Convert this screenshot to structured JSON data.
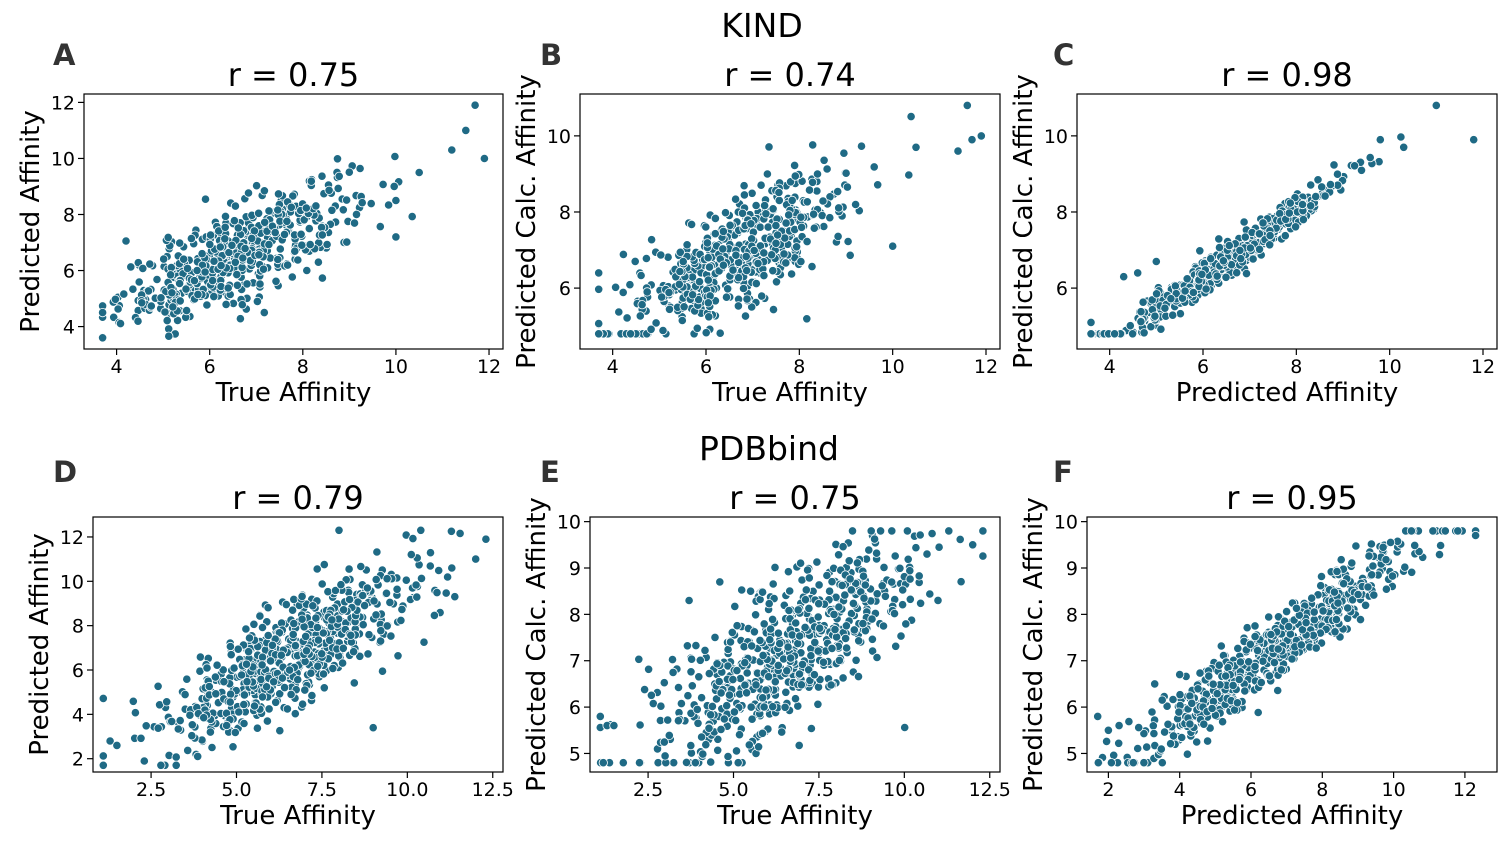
{
  "colors": {
    "point": "#1f6a85"
  },
  "groups": [
    {
      "title": "KIND"
    },
    {
      "title": "PDBbind"
    }
  ],
  "chart_data": [
    {
      "type": "scatter",
      "letter": "A",
      "title": "r = 0.75",
      "xlabel": "True Affinity",
      "ylabel": "Predicted Affinity",
      "xlim": [
        3.3,
        12.3
      ],
      "ylim": [
        3.2,
        12.3
      ],
      "xticks": [
        4,
        6,
        8,
        10,
        12
      ],
      "yticks": [
        4,
        6,
        8,
        10,
        12
      ],
      "n_points": 520,
      "r": 0.75,
      "x_center": 6.6,
      "x_spread": 1.25,
      "y_center": 6.6,
      "y_spread": 1.25,
      "x_range": [
        3.7,
        12.0
      ],
      "y_range": [
        3.6,
        11.9
      ],
      "outliers": [
        [
          3.7,
          4.5
        ],
        [
          11.2,
          10.3
        ],
        [
          11.5,
          11.0
        ],
        [
          11.7,
          11.9
        ],
        [
          11.9,
          10.0
        ],
        [
          10.5,
          9.5
        ],
        [
          10.0,
          7.2
        ],
        [
          10.0,
          8.5
        ]
      ]
    },
    {
      "type": "scatter",
      "letter": "B",
      "title": "r = 0.74",
      "xlabel": "True Affinity",
      "ylabel": "Predicted Calc. Affinity",
      "xlim": [
        3.3,
        12.3
      ],
      "ylim": [
        4.4,
        11.1
      ],
      "xticks": [
        4,
        6,
        8,
        10,
        12
      ],
      "yticks": [
        6,
        8,
        10
      ],
      "n_points": 520,
      "r": 0.74,
      "x_center": 6.6,
      "x_spread": 1.25,
      "y_center": 6.8,
      "y_spread": 1.1,
      "x_range": [
        3.7,
        12.0
      ],
      "y_range": [
        4.8,
        10.8
      ],
      "outliers": [
        [
          3.7,
          6.4
        ],
        [
          11.6,
          10.8
        ],
        [
          11.7,
          9.9
        ],
        [
          11.9,
          10.0
        ],
        [
          11.4,
          9.6
        ],
        [
          10.5,
          9.7
        ],
        [
          10.0,
          7.1
        ]
      ]
    },
    {
      "type": "scatter",
      "letter": "C",
      "title": "r = 0.98",
      "xlabel": "Predicted Affinity",
      "ylabel": "Predicted Calc. Affinity",
      "xlim": [
        3.3,
        12.3
      ],
      "ylim": [
        4.4,
        11.1
      ],
      "xticks": [
        4,
        6,
        8,
        10,
        12
      ],
      "yticks": [
        6,
        8,
        10
      ],
      "n_points": 520,
      "r": 0.98,
      "x_center": 6.6,
      "x_spread": 1.25,
      "y_center": 6.8,
      "y_spread": 1.1,
      "x_range": [
        3.6,
        11.8
      ],
      "y_range": [
        4.8,
        10.8
      ],
      "outliers": [
        [
          3.6,
          5.1
        ],
        [
          4.3,
          6.3
        ],
        [
          4.6,
          6.4
        ],
        [
          5.0,
          6.7
        ],
        [
          11.0,
          10.8
        ],
        [
          11.8,
          9.9
        ],
        [
          10.3,
          9.7
        ],
        [
          9.8,
          9.9
        ]
      ]
    },
    {
      "type": "scatter",
      "letter": "D",
      "title": "r = 0.79",
      "xlabel": "True Affinity",
      "ylabel": "Predicted Affinity",
      "xlim": [
        0.8,
        12.8
      ],
      "ylim": [
        1.4,
        12.9
      ],
      "xticks": [
        2.5,
        5.0,
        7.5,
        10.0,
        12.5
      ],
      "yticks": [
        2,
        4,
        6,
        8,
        10,
        12
      ],
      "n_points": 650,
      "r": 0.79,
      "x_center": 6.5,
      "x_spread": 1.9,
      "y_center": 6.6,
      "y_spread": 2.0,
      "x_range": [
        1.1,
        12.3
      ],
      "y_range": [
        1.7,
        12.3
      ],
      "outliers": [
        [
          1.1,
          1.7
        ],
        [
          1.3,
          2.8
        ],
        [
          1.5,
          2.6
        ],
        [
          11.3,
          10.6
        ],
        [
          12.0,
          11.0
        ],
        [
          12.3,
          11.9
        ],
        [
          8.0,
          12.3
        ],
        [
          9.0,
          3.4
        ]
      ]
    },
    {
      "type": "scatter",
      "letter": "E",
      "title": "r = 0.75",
      "xlabel": "True Affinity",
      "ylabel": "Predicted Calc. Affinity",
      "xlim": [
        0.8,
        12.8
      ],
      "ylim": [
        4.6,
        10.1
      ],
      "xticks": [
        2.5,
        5.0,
        7.5,
        10.0,
        12.5
      ],
      "yticks": [
        5,
        6,
        7,
        8,
        9,
        10
      ],
      "n_points": 650,
      "r": 0.75,
      "x_center": 6.5,
      "x_spread": 1.9,
      "y_center": 7.2,
      "y_spread": 1.2,
      "x_range": [
        1.1,
        12.3
      ],
      "y_range": [
        4.8,
        9.8
      ],
      "outliers": [
        [
          1.1,
          5.8
        ],
        [
          1.3,
          5.6
        ],
        [
          1.5,
          5.6
        ],
        [
          11.3,
          9.8
        ],
        [
          12.0,
          9.5
        ],
        [
          12.3,
          9.8
        ],
        [
          3.7,
          8.3
        ],
        [
          4.6,
          8.7
        ],
        [
          5.5,
          8.5
        ]
      ]
    },
    {
      "type": "scatter",
      "letter": "F",
      "title": "r = 0.95",
      "xlabel": "Predicted Affinity",
      "ylabel": "Predicted Calc. Affinity",
      "xlim": [
        1.4,
        12.9
      ],
      "ylim": [
        4.6,
        10.1
      ],
      "xticks": [
        2,
        4,
        6,
        8,
        10,
        12
      ],
      "yticks": [
        5,
        6,
        7,
        8,
        9,
        10
      ],
      "n_points": 650,
      "r": 0.95,
      "x_center": 6.6,
      "x_spread": 2.0,
      "y_center": 7.2,
      "y_spread": 1.2,
      "x_range": [
        1.7,
        12.3
      ],
      "y_range": [
        4.8,
        9.8
      ],
      "outliers": [
        [
          1.7,
          5.8
        ],
        [
          2.0,
          5.5
        ],
        [
          2.3,
          5.6
        ],
        [
          11.8,
          9.8
        ],
        [
          12.3,
          9.7
        ],
        [
          10.5,
          9.8
        ],
        [
          3.3,
          6.5
        ],
        [
          4.0,
          6.7
        ]
      ]
    }
  ]
}
